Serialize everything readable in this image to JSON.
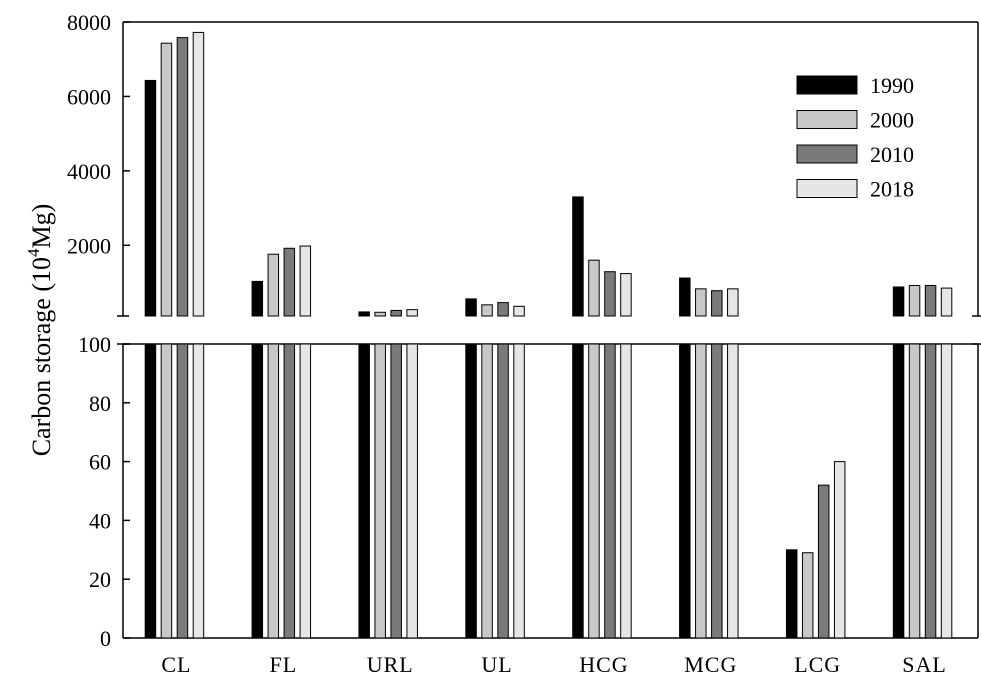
{
  "chart_data": {
    "type": "bar",
    "ylabel": {
      "main": "Carbon storage (10",
      "sup": "4",
      "unit": "Mg)"
    },
    "categories": [
      "CL",
      "FL",
      "URL",
      "UL",
      "HCG",
      "MCG",
      "LCG",
      "SAL"
    ],
    "series": [
      {
        "name": "1990",
        "color": "#000000",
        "values": [
          6430,
          1030,
          210,
          560,
          3300,
          1120,
          30,
          880
        ]
      },
      {
        "name": "2000",
        "color": "#c8c8c8",
        "values": [
          7430,
          1760,
          200,
          400,
          1600,
          830,
          29,
          920
        ]
      },
      {
        "name": "2010",
        "color": "#7a7a7a",
        "values": [
          7580,
          1920,
          250,
          460,
          1290,
          780,
          52,
          920
        ]
      },
      {
        "name": "2018",
        "color": "#e6e6e6",
        "values": [
          7720,
          1980,
          270,
          360,
          1240,
          830,
          60,
          850
        ]
      }
    ],
    "upper_panel": {
      "ylim": [
        100,
        8000
      ],
      "ticks": [
        "2000",
        "4000",
        "6000",
        "8000"
      ]
    },
    "lower_panel": {
      "ylim": [
        0,
        100
      ],
      "ticks": [
        "0",
        "20",
        "40",
        "60",
        "80",
        "100"
      ]
    },
    "legend": {
      "position": "top-right"
    },
    "grid": false
  }
}
